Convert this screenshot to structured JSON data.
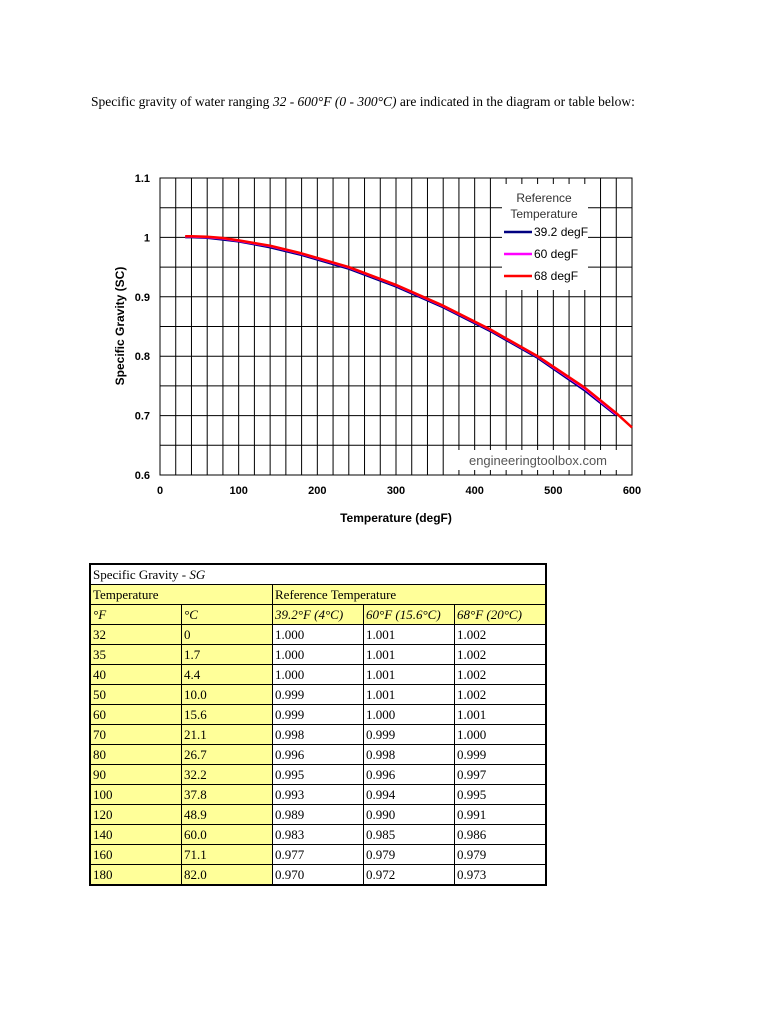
{
  "intro": {
    "text_a": "Specific gravity of water ranging ",
    "text_b": "32 - 600°F (0 - 300°C)",
    "text_c": " are indicated in the diagram or table below:"
  },
  "chart_data": {
    "type": "line",
    "title": "",
    "xlabel": "Temperature (degF)",
    "ylabel": "Specific Gravity (SC)",
    "xlim": [
      0,
      600
    ],
    "ylim": [
      0.6,
      1.1
    ],
    "x_ticks": [
      "0",
      "100",
      "200",
      "300",
      "400",
      "500",
      "600"
    ],
    "y_ticks": [
      "0.6",
      "0.7",
      "0.8",
      "0.9",
      "1",
      "1.1"
    ],
    "grid": true,
    "legend_title": "Reference Temperature",
    "legend_placement": "top-right",
    "watermark": "engineeringtoolbox.com",
    "series": [
      {
        "name": "39.2 degF",
        "color": "#000080",
        "x": [
          32,
          40,
          60,
          80,
          100,
          140,
          180,
          240,
          300,
          360,
          420,
          480,
          540,
          580
        ],
        "y": [
          1.0,
          1.0,
          0.999,
          0.996,
          0.993,
          0.983,
          0.97,
          0.947,
          0.917,
          0.882,
          0.842,
          0.797,
          0.742,
          0.7
        ]
      },
      {
        "name": "60 degF",
        "color": "#ff00ff",
        "x": [
          32,
          40,
          60,
          80,
          100,
          140,
          180,
          240,
          300,
          360,
          420,
          480,
          540,
          580
        ],
        "y": [
          1.001,
          1.001,
          1.0,
          0.998,
          0.994,
          0.985,
          0.972,
          0.949,
          0.919,
          0.884,
          0.844,
          0.799,
          0.745,
          0.702
        ]
      },
      {
        "name": "68 degF",
        "color": "#ff0000",
        "x": [
          32,
          40,
          60,
          80,
          100,
          140,
          180,
          240,
          300,
          360,
          420,
          480,
          540,
          580,
          600
        ],
        "y": [
          1.002,
          1.002,
          1.001,
          0.999,
          0.995,
          0.986,
          0.973,
          0.95,
          0.92,
          0.885,
          0.845,
          0.8,
          0.747,
          0.704,
          0.68
        ]
      }
    ]
  },
  "table": {
    "title_a": "Specific Gravity - ",
    "title_b": "SG",
    "temperature_header": "Temperature",
    "reference_header": "Reference Temperature",
    "col_f": "°F",
    "col_c": "°C",
    "col_ref1": "39.2°F (4°C)",
    "col_ref2": "60°F (15.6°C)",
    "col_ref3": "68°F (20°C)",
    "rows": [
      [
        "32",
        "0",
        "1.000",
        "1.001",
        "1.002"
      ],
      [
        "35",
        "1.7",
        "1.000",
        "1.001",
        "1.002"
      ],
      [
        "40",
        "4.4",
        "1.000",
        "1.001",
        "1.002"
      ],
      [
        "50",
        "10.0",
        "0.999",
        "1.001",
        "1.002"
      ],
      [
        "60",
        "15.6",
        "0.999",
        "1.000",
        "1.001"
      ],
      [
        "70",
        "21.1",
        "0.998",
        "0.999",
        "1.000"
      ],
      [
        "80",
        "26.7",
        "0.996",
        "0.998",
        "0.999"
      ],
      [
        "90",
        "32.2",
        "0.995",
        "0.996",
        "0.997"
      ],
      [
        "100",
        "37.8",
        "0.993",
        "0.994",
        "0.995"
      ],
      [
        "120",
        "48.9",
        "0.989",
        "0.990",
        "0.991"
      ],
      [
        "140",
        "60.0",
        "0.983",
        "0.985",
        "0.986"
      ],
      [
        "160",
        "71.1",
        "0.977",
        "0.979",
        "0.979"
      ],
      [
        "180",
        "82.0",
        "0.970",
        "0.972",
        "0.973"
      ]
    ]
  }
}
